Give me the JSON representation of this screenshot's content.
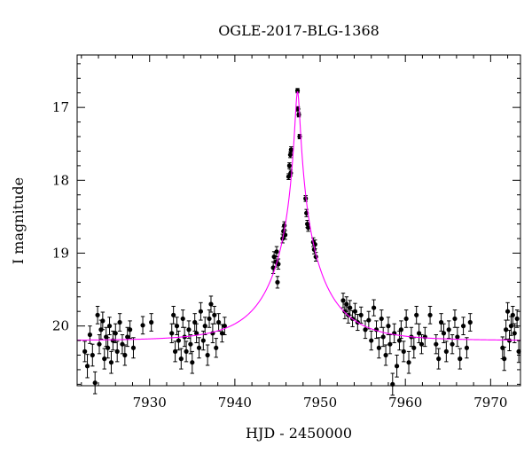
{
  "chart_data": {
    "type": "scatter",
    "title": "OGLE-2017-BLG-1368",
    "xlabel": "HJD - 2450000",
    "ylabel": "I magnitude",
    "xlim": [
      7921.5,
      7973.5
    ],
    "ylim": [
      20.82,
      16.28
    ],
    "y_inverted": true,
    "grid": false,
    "xticks": [
      7930,
      7940,
      7950,
      7960,
      7970
    ],
    "xtick_labels": [
      "7930",
      "7940",
      "7950",
      "7960",
      "7970"
    ],
    "yticks": [
      17,
      18,
      19,
      20
    ],
    "ytick_labels": [
      "17",
      "18",
      "19",
      "20"
    ],
    "colors": {
      "data": "#000000",
      "model": "#ff00ff"
    },
    "model": {
      "t0": 7947.35,
      "u0": 0.043,
      "tE": 6.2,
      "baseline_mag": 20.2
    },
    "series": [
      {
        "points": [
          {
            "x": 7922.4,
            "y": 20.35,
            "e": 0.14
          },
          {
            "x": 7922.7,
            "y": 20.55,
            "e": 0.16
          },
          {
            "x": 7923.0,
            "y": 20.12,
            "e": 0.12
          },
          {
            "x": 7923.3,
            "y": 20.4,
            "e": 0.15
          },
          {
            "x": 7923.6,
            "y": 20.78,
            "e": 0.15
          },
          {
            "x": 7923.9,
            "y": 19.85,
            "e": 0.12
          },
          {
            "x": 7924.1,
            "y": 20.25,
            "e": 0.13
          },
          {
            "x": 7924.3,
            "y": 20.05,
            "e": 0.13
          },
          {
            "x": 7924.5,
            "y": 19.93,
            "e": 0.12
          },
          {
            "x": 7924.7,
            "y": 20.45,
            "e": 0.14
          },
          {
            "x": 7924.9,
            "y": 20.15,
            "e": 0.13
          },
          {
            "x": 7925.1,
            "y": 20.3,
            "e": 0.14
          },
          {
            "x": 7925.3,
            "y": 20.0,
            "e": 0.12
          },
          {
            "x": 7925.5,
            "y": 20.5,
            "e": 0.15
          },
          {
            "x": 7925.7,
            "y": 20.2,
            "e": 0.13
          },
          {
            "x": 7926.0,
            "y": 20.1,
            "e": 0.13
          },
          {
            "x": 7926.2,
            "y": 20.35,
            "e": 0.14
          },
          {
            "x": 7926.5,
            "y": 19.95,
            "e": 0.12
          },
          {
            "x": 7926.8,
            "y": 20.25,
            "e": 0.13
          },
          {
            "x": 7927.1,
            "y": 20.4,
            "e": 0.14
          },
          {
            "x": 7927.4,
            "y": 20.15,
            "e": 0.13
          },
          {
            "x": 7927.7,
            "y": 20.05,
            "e": 0.12
          },
          {
            "x": 7928.1,
            "y": 20.3,
            "e": 0.14
          },
          {
            "x": 7929.2,
            "y": 19.99,
            "e": 0.12
          },
          {
            "x": 7930.2,
            "y": 19.95,
            "e": 0.12
          },
          {
            "x": 7932.6,
            "y": 20.1,
            "e": 0.13
          },
          {
            "x": 7932.8,
            "y": 19.85,
            "e": 0.12
          },
          {
            "x": 7933.0,
            "y": 20.35,
            "e": 0.14
          },
          {
            "x": 7933.2,
            "y": 20.0,
            "e": 0.12
          },
          {
            "x": 7933.4,
            "y": 20.2,
            "e": 0.13
          },
          {
            "x": 7933.7,
            "y": 20.45,
            "e": 0.14
          },
          {
            "x": 7933.9,
            "y": 19.9,
            "e": 0.12
          },
          {
            "x": 7934.1,
            "y": 20.15,
            "e": 0.13
          },
          {
            "x": 7934.3,
            "y": 20.35,
            "e": 0.14
          },
          {
            "x": 7934.6,
            "y": 20.05,
            "e": 0.12
          },
          {
            "x": 7934.8,
            "y": 20.25,
            "e": 0.13
          },
          {
            "x": 7935.0,
            "y": 20.5,
            "e": 0.15
          },
          {
            "x": 7935.3,
            "y": 19.95,
            "e": 0.12
          },
          {
            "x": 7935.5,
            "y": 20.1,
            "e": 0.13
          },
          {
            "x": 7935.8,
            "y": 20.3,
            "e": 0.14
          },
          {
            "x": 7936.0,
            "y": 19.8,
            "e": 0.12
          },
          {
            "x": 7936.3,
            "y": 20.2,
            "e": 0.13
          },
          {
            "x": 7936.5,
            "y": 20.0,
            "e": 0.12
          },
          {
            "x": 7936.8,
            "y": 20.4,
            "e": 0.14
          },
          {
            "x": 7937.0,
            "y": 19.9,
            "e": 0.12
          },
          {
            "x": 7937.2,
            "y": 19.7,
            "e": 0.11
          },
          {
            "x": 7937.4,
            "y": 20.1,
            "e": 0.13
          },
          {
            "x": 7937.6,
            "y": 19.85,
            "e": 0.12
          },
          {
            "x": 7937.8,
            "y": 20.3,
            "e": 0.13
          },
          {
            "x": 7938.1,
            "y": 19.95,
            "e": 0.12
          },
          {
            "x": 7938.5,
            "y": 20.1,
            "e": 0.12
          },
          {
            "x": 7938.8,
            "y": 20.0,
            "e": 0.12
          },
          {
            "x": 7944.5,
            "y": 19.2,
            "e": 0.08
          },
          {
            "x": 7944.6,
            "y": 19.05,
            "e": 0.07
          },
          {
            "x": 7944.8,
            "y": 19.12,
            "e": 0.07
          },
          {
            "x": 7944.9,
            "y": 18.98,
            "e": 0.07
          },
          {
            "x": 7945.0,
            "y": 19.4,
            "e": 0.08
          },
          {
            "x": 7945.1,
            "y": 19.15,
            "e": 0.07
          },
          {
            "x": 7945.6,
            "y": 18.8,
            "e": 0.06
          },
          {
            "x": 7945.7,
            "y": 18.7,
            "e": 0.06
          },
          {
            "x": 7945.8,
            "y": 18.62,
            "e": 0.05
          },
          {
            "x": 7945.9,
            "y": 18.75,
            "e": 0.06
          },
          {
            "x": 7946.3,
            "y": 17.95,
            "e": 0.04
          },
          {
            "x": 7946.4,
            "y": 17.8,
            "e": 0.04
          },
          {
            "x": 7946.5,
            "y": 17.65,
            "e": 0.04
          },
          {
            "x": 7946.55,
            "y": 17.9,
            "e": 0.04
          },
          {
            "x": 7946.6,
            "y": 17.58,
            "e": 0.04
          },
          {
            "x": 7947.35,
            "y": 16.77,
            "e": 0.03
          },
          {
            "x": 7947.4,
            "y": 17.02,
            "e": 0.03
          },
          {
            "x": 7947.5,
            "y": 17.1,
            "e": 0.03
          },
          {
            "x": 7947.6,
            "y": 17.4,
            "e": 0.03
          },
          {
            "x": 7948.3,
            "y": 18.25,
            "e": 0.04
          },
          {
            "x": 7948.4,
            "y": 18.45,
            "e": 0.05
          },
          {
            "x": 7948.5,
            "y": 18.6,
            "e": 0.05
          },
          {
            "x": 7948.6,
            "y": 18.65,
            "e": 0.05
          },
          {
            "x": 7949.2,
            "y": 18.85,
            "e": 0.06
          },
          {
            "x": 7949.3,
            "y": 18.95,
            "e": 0.06
          },
          {
            "x": 7949.4,
            "y": 18.88,
            "e": 0.06
          },
          {
            "x": 7949.5,
            "y": 19.05,
            "e": 0.06
          },
          {
            "x": 7952.7,
            "y": 19.65,
            "e": 0.1
          },
          {
            "x": 7952.9,
            "y": 19.8,
            "e": 0.1
          },
          {
            "x": 7953.1,
            "y": 19.7,
            "e": 0.1
          },
          {
            "x": 7953.3,
            "y": 19.85,
            "e": 0.11
          },
          {
            "x": 7953.5,
            "y": 19.75,
            "e": 0.1
          },
          {
            "x": 7953.8,
            "y": 19.9,
            "e": 0.11
          },
          {
            "x": 7954.1,
            "y": 19.8,
            "e": 0.11
          },
          {
            "x": 7954.4,
            "y": 19.95,
            "e": 0.11
          },
          {
            "x": 7954.8,
            "y": 19.85,
            "e": 0.11
          },
          {
            "x": 7955.3,
            "y": 20.05,
            "e": 0.12
          },
          {
            "x": 7955.7,
            "y": 19.92,
            "e": 0.12
          },
          {
            "x": 7956.0,
            "y": 20.2,
            "e": 0.13
          },
          {
            "x": 7956.3,
            "y": 19.75,
            "e": 0.11
          },
          {
            "x": 7956.6,
            "y": 20.05,
            "e": 0.12
          },
          {
            "x": 7956.9,
            "y": 20.3,
            "e": 0.14
          },
          {
            "x": 7957.2,
            "y": 19.9,
            "e": 0.12
          },
          {
            "x": 7957.4,
            "y": 20.15,
            "e": 0.13
          },
          {
            "x": 7957.7,
            "y": 20.4,
            "e": 0.14
          },
          {
            "x": 7958.0,
            "y": 20.0,
            "e": 0.12
          },
          {
            "x": 7958.2,
            "y": 20.25,
            "e": 0.13
          },
          {
            "x": 7958.5,
            "y": 20.8,
            "e": 0.15
          },
          {
            "x": 7958.7,
            "y": 20.1,
            "e": 0.13
          },
          {
            "x": 7959.0,
            "y": 20.55,
            "e": 0.15
          },
          {
            "x": 7959.3,
            "y": 20.2,
            "e": 0.13
          },
          {
            "x": 7959.5,
            "y": 20.05,
            "e": 0.12
          },
          {
            "x": 7959.8,
            "y": 20.35,
            "e": 0.14
          },
          {
            "x": 7960.1,
            "y": 19.9,
            "e": 0.12
          },
          {
            "x": 7960.4,
            "y": 20.5,
            "e": 0.15
          },
          {
            "x": 7960.7,
            "y": 20.15,
            "e": 0.13
          },
          {
            "x": 7961.0,
            "y": 20.3,
            "e": 0.14
          },
          {
            "x": 7961.3,
            "y": 19.85,
            "e": 0.12
          },
          {
            "x": 7961.6,
            "y": 20.1,
            "e": 0.13
          },
          {
            "x": 7961.9,
            "y": 20.25,
            "e": 0.13
          },
          {
            "x": 7962.3,
            "y": 20.15,
            "e": 0.13
          },
          {
            "x": 7962.9,
            "y": 19.85,
            "e": 0.12
          },
          {
            "x": 7963.6,
            "y": 20.25,
            "e": 0.13
          },
          {
            "x": 7963.9,
            "y": 20.45,
            "e": 0.14
          },
          {
            "x": 7964.2,
            "y": 19.95,
            "e": 0.12
          },
          {
            "x": 7964.5,
            "y": 20.1,
            "e": 0.13
          },
          {
            "x": 7964.8,
            "y": 20.35,
            "e": 0.14
          },
          {
            "x": 7965.1,
            "y": 20.05,
            "e": 0.12
          },
          {
            "x": 7965.5,
            "y": 20.25,
            "e": 0.13
          },
          {
            "x": 7965.8,
            "y": 19.9,
            "e": 0.12
          },
          {
            "x": 7966.1,
            "y": 20.15,
            "e": 0.13
          },
          {
            "x": 7966.4,
            "y": 20.45,
            "e": 0.14
          },
          {
            "x": 7966.8,
            "y": 20.0,
            "e": 0.12
          },
          {
            "x": 7967.2,
            "y": 20.3,
            "e": 0.14
          },
          {
            "x": 7967.6,
            "y": 19.95,
            "e": 0.12
          },
          {
            "x": 7971.4,
            "y": 20.3,
            "e": 0.15
          },
          {
            "x": 7971.6,
            "y": 20.45,
            "e": 0.16
          },
          {
            "x": 7971.8,
            "y": 20.05,
            "e": 0.13
          },
          {
            "x": 7972.0,
            "y": 19.8,
            "e": 0.12
          },
          {
            "x": 7972.2,
            "y": 20.2,
            "e": 0.14
          },
          {
            "x": 7972.4,
            "y": 20.0,
            "e": 0.13
          },
          {
            "x": 7972.6,
            "y": 19.85,
            "e": 0.12
          },
          {
            "x": 7972.8,
            "y": 20.1,
            "e": 0.13
          },
          {
            "x": 7973.1,
            "y": 19.9,
            "e": 0.12
          },
          {
            "x": 7973.3,
            "y": 20.35,
            "e": 0.15
          }
        ]
      }
    ]
  }
}
